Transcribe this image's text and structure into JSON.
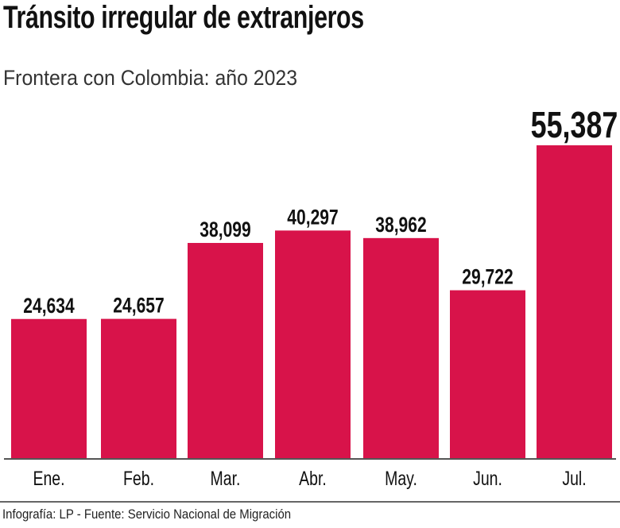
{
  "chart_data": {
    "type": "bar",
    "title": "Tránsito irregular de extranjeros",
    "subtitle": "Frontera con Colombia: año 2023",
    "categories": [
      "Ene.",
      "Feb.",
      "Mar.",
      "Abr.",
      "May.",
      "Jun.",
      "Jul."
    ],
    "values": [
      24634,
      24657,
      38099,
      40297,
      38962,
      29722,
      55387
    ],
    "value_labels": [
      "24,634",
      "24,657",
      "38,099",
      "40,297",
      "38,962",
      "29,722",
      "55,387"
    ],
    "highlight_index": 6,
    "xlabel": "",
    "ylabel": "",
    "ylim": [
      0,
      55387
    ],
    "grid": false,
    "bar_color": "#d8134a"
  },
  "footer": "Infografía: LP - Fuente: Servicio Nacional de Migración"
}
